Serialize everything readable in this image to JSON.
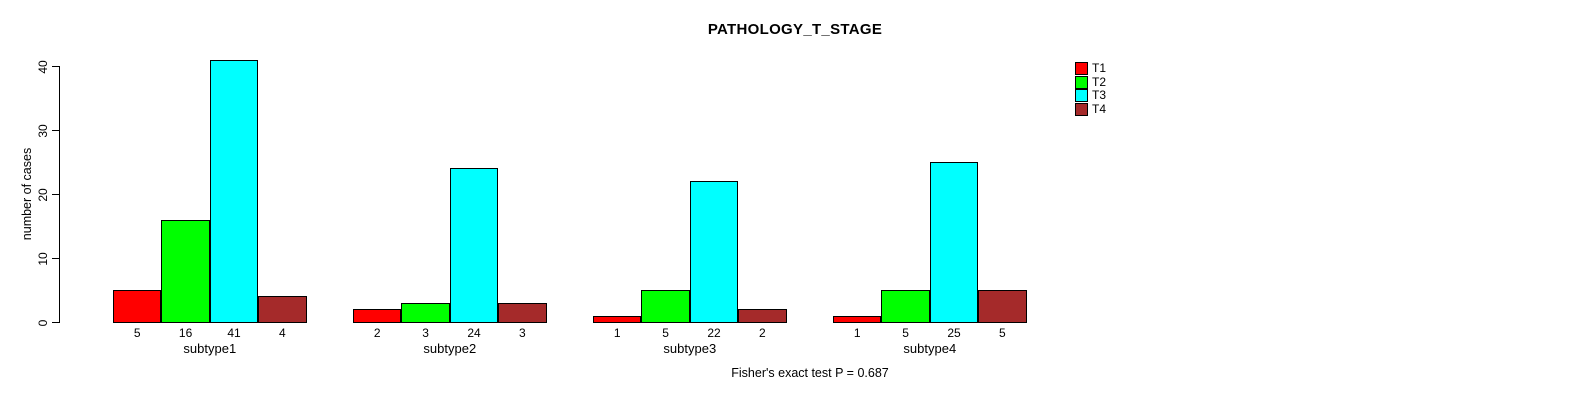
{
  "chart_data": {
    "type": "bar",
    "title": "PATHOLOGY_T_STAGE",
    "xlabel": "",
    "ylabel": "number of cases",
    "categories": [
      "subtype1",
      "subtype2",
      "subtype3",
      "subtype4"
    ],
    "series": [
      {
        "name": "T1",
        "color": "#ff0000",
        "values": [
          5,
          2,
          1,
          1
        ]
      },
      {
        "name": "T2",
        "color": "#00ff00",
        "values": [
          16,
          3,
          5,
          5
        ]
      },
      {
        "name": "T3",
        "color": "#00ffff",
        "values": [
          41,
          24,
          22,
          25
        ]
      },
      {
        "name": "T4",
        "color": "#a52a2a",
        "values": [
          4,
          3,
          2,
          5
        ]
      }
    ],
    "bar_value_labels_shown": true,
    "yticks": [
      0,
      10,
      20,
      30,
      40
    ],
    "ylim": [
      0,
      41
    ],
    "grid": false,
    "legend_position": "right",
    "axis_color": "#000000",
    "bar_border_color": "#000000",
    "footnote": "Fisher's exact test P = 0.687"
  }
}
